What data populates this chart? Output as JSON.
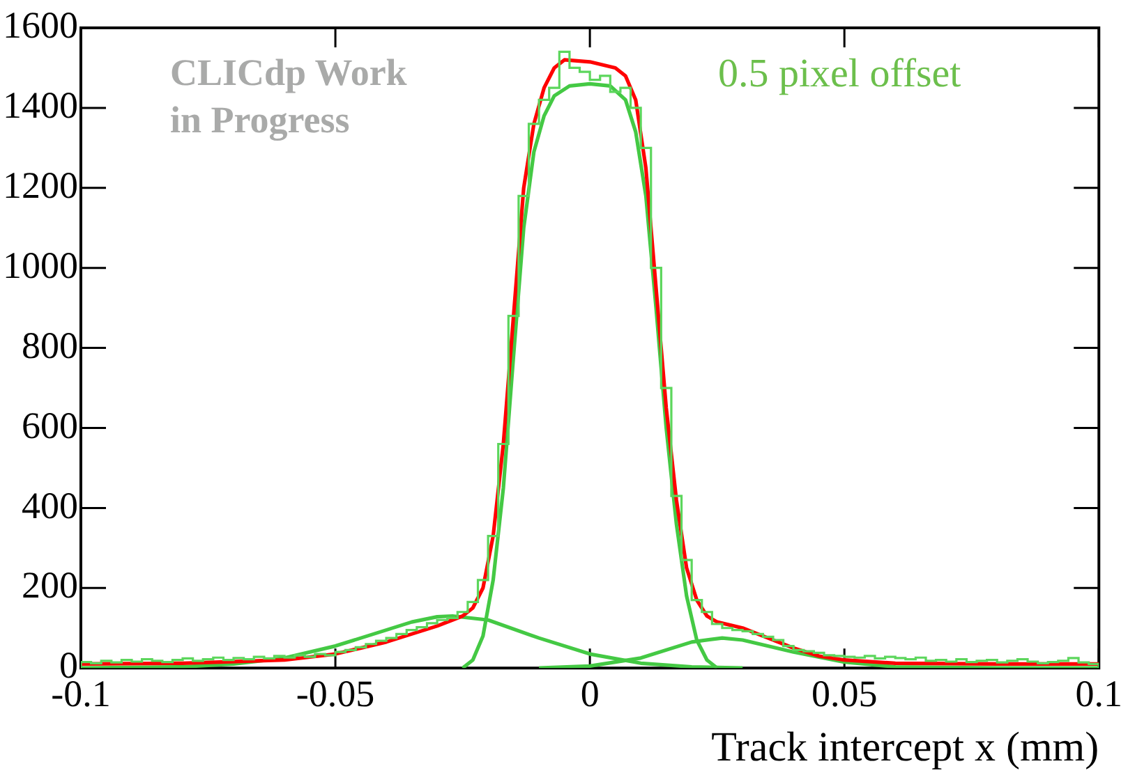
{
  "chart_data": {
    "type": "histogram",
    "xlabel": "Track intercept x (mm)",
    "color": "#5cd65c",
    "bins": [
      -0.1,
      -0.098,
      -0.096,
      -0.094,
      -0.092,
      -0.09,
      -0.088,
      -0.086,
      -0.084,
      -0.082,
      -0.08,
      -0.078,
      -0.076,
      -0.074,
      -0.072,
      -0.07,
      -0.068,
      -0.066,
      -0.064,
      -0.062,
      -0.06,
      -0.058,
      -0.056,
      -0.054,
      -0.052,
      -0.05,
      -0.048,
      -0.046,
      -0.044,
      -0.042,
      -0.04,
      -0.038,
      -0.036,
      -0.034,
      -0.032,
      -0.03,
      -0.028,
      -0.026,
      -0.024,
      -0.022,
      -0.02,
      -0.018,
      -0.016,
      -0.014,
      -0.012,
      -0.01,
      -0.008,
      -0.006,
      -0.004,
      -0.002,
      0,
      0.002,
      0.004,
      0.006,
      0.008,
      0.01,
      0.012,
      0.014,
      0.016,
      0.018,
      0.02,
      0.022,
      0.024,
      0.026,
      0.028,
      0.03,
      0.032,
      0.034,
      0.036,
      0.038,
      0.04,
      0.042,
      0.044,
      0.046,
      0.048,
      0.05,
      0.052,
      0.054,
      0.056,
      0.058,
      0.06,
      0.062,
      0.064,
      0.066,
      0.068,
      0.07,
      0.072,
      0.074,
      0.076,
      0.078,
      0.08,
      0.082,
      0.084,
      0.086,
      0.088,
      0.09,
      0.092,
      0.094,
      0.096,
      0.098,
      0.1
    ],
    "values": [
      15,
      12,
      18,
      14,
      20,
      16,
      22,
      18,
      15,
      20,
      24,
      18,
      22,
      26,
      20,
      25,
      22,
      28,
      24,
      30,
      26,
      32,
      28,
      35,
      32,
      40,
      45,
      52,
      60,
      68,
      75,
      85,
      95,
      102,
      112,
      120,
      125,
      140,
      165,
      220,
      330,
      560,
      880,
      1180,
      1360,
      1420,
      1450,
      1540,
      1500,
      1490,
      1470,
      1480,
      1440,
      1450,
      1400,
      1300,
      1000,
      700,
      430,
      270,
      170,
      140,
      110,
      100,
      95,
      92,
      85,
      78,
      70,
      55,
      45,
      42,
      38,
      32,
      30,
      28,
      26,
      30,
      24,
      28,
      25,
      22,
      26,
      18,
      20,
      16,
      22,
      15,
      18,
      20,
      14,
      18,
      22,
      16,
      12,
      15,
      18,
      25,
      14,
      10
    ],
    "series": [
      {
        "type": "line",
        "color": "#44c944",
        "x": [
          -0.025,
          -0.023,
          -0.021,
          -0.019,
          -0.017,
          -0.015,
          -0.013,
          -0.011,
          -0.009,
          -0.007,
          -0.004,
          0,
          0.004,
          0.007,
          0.009,
          0.011,
          0.013,
          0.015,
          0.017,
          0.019,
          0.021,
          0.023,
          0.025
        ],
        "values": [
          0,
          20,
          80,
          220,
          450,
          780,
          1100,
          1290,
          1380,
          1430,
          1455,
          1460,
          1455,
          1420,
          1340,
          1180,
          900,
          600,
          360,
          180,
          70,
          20,
          0
        ]
      },
      {
        "type": "line",
        "color": "#44c944",
        "x": [
          -0.1,
          -0.08,
          -0.07,
          -0.06,
          -0.05,
          -0.04,
          -0.035,
          -0.03,
          -0.027,
          -0.02,
          -0.01,
          0,
          0.01,
          0.02,
          0.03
        ],
        "values": [
          0,
          3,
          10,
          25,
          55,
          95,
          115,
          128,
          130,
          120,
          75,
          35,
          12,
          3,
          0
        ]
      },
      {
        "type": "line",
        "color": "#44c944",
        "x": [
          -0.01,
          0,
          0.01,
          0.02,
          0.026,
          0.03,
          0.04,
          0.05,
          0.06,
          0.08,
          0.1
        ],
        "values": [
          0,
          5,
          25,
          65,
          75,
          70,
          40,
          15,
          3,
          0,
          0
        ]
      },
      {
        "type": "line",
        "color": "#ff0000",
        "x": [
          -0.1,
          -0.08,
          -0.06,
          -0.05,
          -0.04,
          -0.035,
          -0.03,
          -0.027,
          -0.025,
          -0.023,
          -0.021,
          -0.019,
          -0.017,
          -0.015,
          -0.013,
          -0.011,
          -0.009,
          -0.007,
          -0.005,
          0,
          0.005,
          0.007,
          0.009,
          0.011,
          0.013,
          0.015,
          0.017,
          0.019,
          0.021,
          0.023,
          0.025,
          0.03,
          0.035,
          0.04,
          0.045,
          0.05,
          0.06,
          0.08,
          0.1
        ],
        "values": [
          10,
          12,
          20,
          35,
          65,
          85,
          105,
          120,
          130,
          150,
          200,
          330,
          560,
          880,
          1200,
          1360,
          1450,
          1500,
          1520,
          1515,
          1500,
          1480,
          1420,
          1250,
          950,
          650,
          420,
          250,
          170,
          130,
          115,
          100,
          75,
          50,
          30,
          20,
          12,
          10,
          10
        ]
      }
    ],
    "xlim": [
      -0.1,
      0.1
    ],
    "xticks": [
      -0.1,
      -0.05,
      0,
      0.05,
      0.1
    ],
    "ylim": [
      0,
      1600
    ],
    "yticks": [
      0,
      200,
      400,
      600,
      800,
      1000,
      1200,
      1400,
      1600
    ],
    "annotations": [
      "CLICdp Work in Progress",
      "0.5 pixel offset"
    ]
  }
}
